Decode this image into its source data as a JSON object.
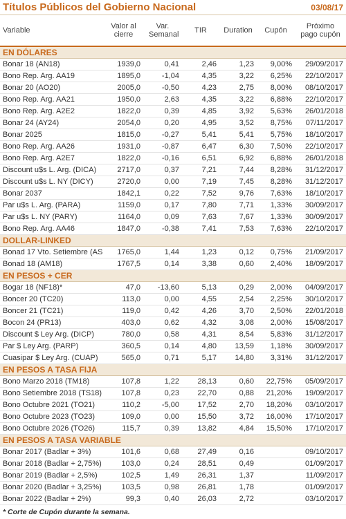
{
  "title": "Títulos Públicos del Gobierno Nacional",
  "date": "03/08/17",
  "columns": [
    "Variable",
    "Valor al cierre",
    "Var. Semanal",
    "TIR",
    "Duration",
    "Cupón",
    "Próximo pago cupón"
  ],
  "sections": [
    {
      "title": "EN DÓLARES",
      "rows": [
        [
          "Bonar 18 (AN18)",
          "1939,0",
          "0,41",
          "2,46",
          "1,23",
          "9,00%",
          "29/09/2017"
        ],
        [
          "Bono Rep. Arg. AA19",
          "1895,0",
          "-1,04",
          "4,35",
          "3,22",
          "6,25%",
          "22/10/2017"
        ],
        [
          "Bonar 20 (AO20)",
          "2005,0",
          "-0,50",
          "4,23",
          "2,75",
          "8,00%",
          "08/10/2017"
        ],
        [
          "Bono Rep. Arg. AA21",
          "1950,0",
          "2,63",
          "4,35",
          "3,22",
          "6,88%",
          "22/10/2017"
        ],
        [
          "Bono Rep. Arg. A2E2",
          "1822,0",
          "0,39",
          "4,85",
          "3,92",
          "5,63%",
          "26/01/2018"
        ],
        [
          "Bonar 24 (AY24)",
          "2054,0",
          "0,20",
          "4,95",
          "3,52",
          "8,75%",
          "07/11/2017"
        ],
        [
          "Bonar 2025",
          "1815,0",
          "-0,27",
          "5,41",
          "5,41",
          "5,75%",
          "18/10/2017"
        ],
        [
          "Bono Rep. Arg. AA26",
          "1931,0",
          "-0,87",
          "6,47",
          "6,30",
          "7,50%",
          "22/10/2017"
        ],
        [
          "Bono Rep. Arg. A2E7",
          "1822,0",
          "-0,16",
          "6,51",
          "6,92",
          "6,88%",
          "26/01/2018"
        ],
        [
          "Discount u$s L. Arg. (DICA)",
          "2717,0",
          "0,37",
          "7,21",
          "7,44",
          "8,28%",
          "31/12/2017"
        ],
        [
          "Discount u$s L. NY (DICY)",
          "2720,0",
          "0,00",
          "7,19",
          "7,45",
          "8,28%",
          "31/12/2017"
        ],
        [
          "Bonar 2037",
          "1842,1",
          "0,22",
          "7,52",
          "9,76",
          "7,63%",
          "18/10/2017"
        ],
        [
          "Par u$s L. Arg. (PARA)",
          "1159,0",
          "0,17",
          "7,80",
          "7,71",
          "1,33%",
          "30/09/2017"
        ],
        [
          "Par u$s L. NY (PARY)",
          "1164,0",
          "0,09",
          "7,63",
          "7,67",
          "1,33%",
          "30/09/2017"
        ],
        [
          "Bono Rep. Arg. AA46",
          "1847,0",
          "-0,38",
          "7,41",
          "7,53",
          "7,63%",
          "22/10/2017"
        ]
      ]
    },
    {
      "title": "DOLLAR-LINKED",
      "rows": [
        [
          "Bonad 17 Vto. Setiembre (AS",
          "1765,0",
          "1,44",
          "1,23",
          "0,12",
          "0,75%",
          "21/09/2017"
        ],
        [
          "Bonad 18 (AM18)",
          "1767,5",
          "0,14",
          "3,38",
          "0,60",
          "2,40%",
          "18/09/2017"
        ]
      ]
    },
    {
      "title": "EN PESOS + CER",
      "rows": [
        [
          "Bogar 18 (NF18)*",
          "47,0",
          "-13,60",
          "5,13",
          "0,29",
          "2,00%",
          "04/09/2017"
        ],
        [
          "Boncer 20 (TC20)",
          "113,0",
          "0,00",
          "4,55",
          "2,54",
          "2,25%",
          "30/10/2017"
        ],
        [
          "Boncer 21 (TC21)",
          "119,0",
          "0,42",
          "4,26",
          "3,70",
          "2,50%",
          "22/01/2018"
        ],
        [
          "Bocon 24 (PR13)",
          "403,0",
          "0,62",
          "4,32",
          "3,08",
          "2,00%",
          "15/08/2017"
        ],
        [
          "Discount $ Ley Arg. (DICP)",
          "780,0",
          "0,58",
          "4,31",
          "8,54",
          "5,83%",
          "31/12/2017"
        ],
        [
          "Par $ Ley Arg. (PARP)",
          "360,5",
          "0,14",
          "4,80",
          "13,59",
          "1,18%",
          "30/09/2017"
        ],
        [
          "Cuasipar $ Ley Arg. (CUAP)",
          "565,0",
          "0,71",
          "5,17",
          "14,80",
          "3,31%",
          "31/12/2017"
        ]
      ]
    },
    {
      "title": "EN PESOS A TASA FIJA",
      "rows": [
        [
          "Bono Marzo 2018 (TM18)",
          "107,8",
          "1,22",
          "28,13",
          "0,60",
          "22,75%",
          "05/09/2017"
        ],
        [
          "Bono Setiembre 2018 (TS18)",
          "107,8",
          "0,23",
          "22,70",
          "0,88",
          "21,20%",
          "19/09/2017"
        ],
        [
          "Bono Octubre 2021 (TO21)",
          "110,2",
          "-5,00",
          "17,52",
          "2,70",
          "18,20%",
          "03/10/2017"
        ],
        [
          "Bono Octubre 2023 (TO23)",
          "109,0",
          "0,00",
          "15,50",
          "3,72",
          "16,00%",
          "17/10/2017"
        ],
        [
          "Bono Octubre 2026 (TO26)",
          "115,7",
          "0,39",
          "13,82",
          "4,84",
          "15,50%",
          "17/10/2017"
        ]
      ]
    },
    {
      "title": "EN PESOS A TASA VARIABLE",
      "rows": [
        [
          "Bonar 2017 (Badlar + 3%)",
          "101,6",
          "0,68",
          "27,49",
          "0,16",
          null,
          "09/10/2017"
        ],
        [
          "Bonar 2018 (Badlar + 2,75%)",
          "103,0",
          "0,24",
          "28,51",
          "0,49",
          null,
          "01/09/2017"
        ],
        [
          "Bonar 2019 (Badlar + 2,5%)",
          "102,5",
          "1,49",
          "26,31",
          "1,37",
          null,
          "11/09/2017"
        ],
        [
          "Bonar 2020 (Badlar + 3,25%)",
          "103,5",
          "0,98",
          "26,81",
          "1,78",
          null,
          "01/09/2017"
        ],
        [
          "Bonar 2022 (Badlar + 2%)",
          "99,3",
          "0,40",
          "26,03",
          "2,72",
          null,
          "03/10/2017"
        ]
      ]
    }
  ],
  "footnote": "* Corte de Cupón durante la semana."
}
